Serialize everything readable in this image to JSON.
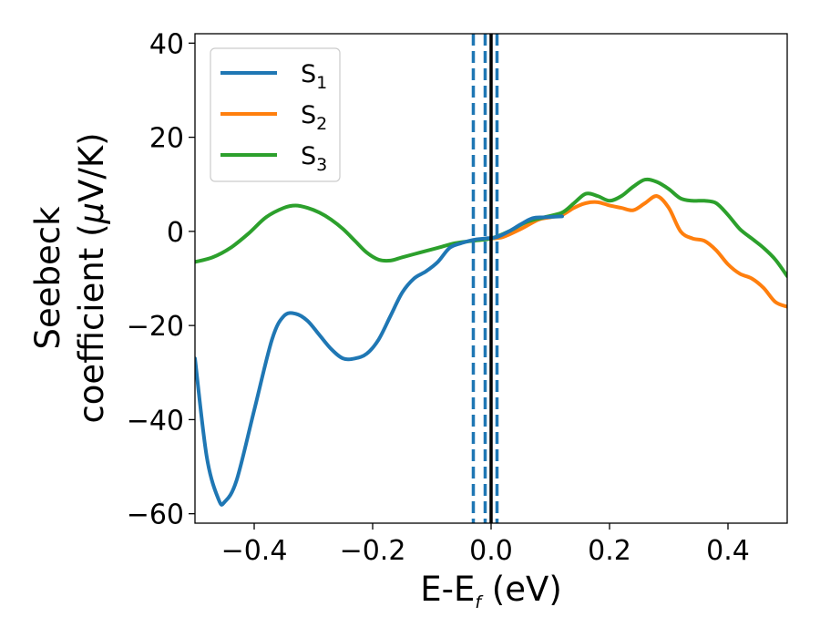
{
  "chart_data": {
    "type": "line",
    "xlabel": {
      "main": "E-E",
      "sub": "f",
      "suffix": " (eV)"
    },
    "ylabel": {
      "line1": "Seebeck",
      "line2_main": "coefficient  (",
      "line2_mu": "μ",
      "line2_suffix": "V/K)"
    },
    "xlim": [
      -0.5,
      0.5
    ],
    "ylim": [
      -62,
      42
    ],
    "xticks": [
      -0.4,
      -0.2,
      0.0,
      0.2,
      0.4
    ],
    "xtick_labels": [
      "−0.4",
      "−0.2",
      "0.0",
      "0.2",
      "0.4"
    ],
    "yticks": [
      -60,
      -40,
      -20,
      0,
      20,
      40
    ],
    "ytick_labels": [
      "−60",
      "−40",
      "−20",
      "0",
      "20",
      "40"
    ],
    "grid": false,
    "legend_position": "top-left",
    "vlines": [
      {
        "x": 0.0,
        "color": "#000000",
        "style": "solid"
      },
      {
        "x": -0.03,
        "color": "#1f77b4",
        "style": "dashed"
      },
      {
        "x": -0.01,
        "color": "#1f77b4",
        "style": "dashed"
      },
      {
        "x": 0.01,
        "color": "#1f77b4",
        "style": "dashed"
      }
    ],
    "series": [
      {
        "name": "S",
        "sub": "1",
        "color": "#1f77b4",
        "x": [
          -0.5,
          -0.48,
          -0.46,
          -0.45,
          -0.43,
          -0.4,
          -0.37,
          -0.35,
          -0.33,
          -0.31,
          -0.29,
          -0.27,
          -0.25,
          -0.23,
          -0.21,
          -0.19,
          -0.17,
          -0.15,
          -0.13,
          -0.11,
          -0.09,
          -0.07,
          -0.05,
          -0.03,
          -0.01,
          0.01,
          0.03,
          0.05,
          0.07,
          0.09,
          0.12
        ],
        "y": [
          -27,
          -48,
          -57,
          -57.5,
          -53,
          -38,
          -23,
          -18,
          -17.5,
          -19,
          -22,
          -25,
          -27,
          -27,
          -26,
          -23,
          -18,
          -13,
          -10,
          -8.5,
          -6.5,
          -3.5,
          -2.5,
          -1.8,
          -1.5,
          -1.2,
          0,
          1.5,
          2.8,
          3,
          3.2
        ]
      },
      {
        "name": "S",
        "sub": "2",
        "color": "#ff7f0e",
        "x": [
          0.0,
          0.02,
          0.05,
          0.08,
          0.1,
          0.12,
          0.14,
          0.16,
          0.18,
          0.2,
          0.22,
          0.24,
          0.26,
          0.28,
          0.3,
          0.32,
          0.34,
          0.36,
          0.38,
          0.4,
          0.42,
          0.44,
          0.46,
          0.48,
          0.5
        ],
        "y": [
          -1.5,
          -1.2,
          0.5,
          2.5,
          3,
          3.5,
          5,
          6,
          6.2,
          5.5,
          5,
          4.5,
          6,
          7.5,
          5,
          0,
          -1.5,
          -2,
          -4,
          -7,
          -9,
          -10,
          -12,
          -15,
          -16
        ]
      },
      {
        "name": "S",
        "sub": "3",
        "color": "#2ca02c",
        "x": [
          -0.5,
          -0.47,
          -0.44,
          -0.41,
          -0.38,
          -0.35,
          -0.33,
          -0.31,
          -0.29,
          -0.27,
          -0.25,
          -0.23,
          -0.21,
          -0.19,
          -0.17,
          -0.15,
          -0.12,
          -0.09,
          -0.06,
          -0.03,
          0.0,
          0.03,
          0.06,
          0.09,
          0.12,
          0.14,
          0.16,
          0.18,
          0.2,
          0.22,
          0.24,
          0.26,
          0.28,
          0.3,
          0.32,
          0.34,
          0.36,
          0.38,
          0.4,
          0.42,
          0.44,
          0.46,
          0.48,
          0.5
        ],
        "y": [
          -6.5,
          -5.5,
          -3.5,
          -0.5,
          3,
          5,
          5.5,
          5,
          4,
          2.5,
          0.5,
          -2,
          -4.5,
          -6,
          -6.2,
          -5.5,
          -4.5,
          -3.5,
          -2.5,
          -2,
          -1.5,
          0,
          2,
          3,
          4,
          6,
          8,
          7.5,
          6.5,
          7.5,
          9.5,
          11,
          10.5,
          9,
          7,
          6.5,
          6.5,
          6,
          3.5,
          0.5,
          -1.5,
          -3.5,
          -6,
          -9.5
        ]
      }
    ]
  }
}
